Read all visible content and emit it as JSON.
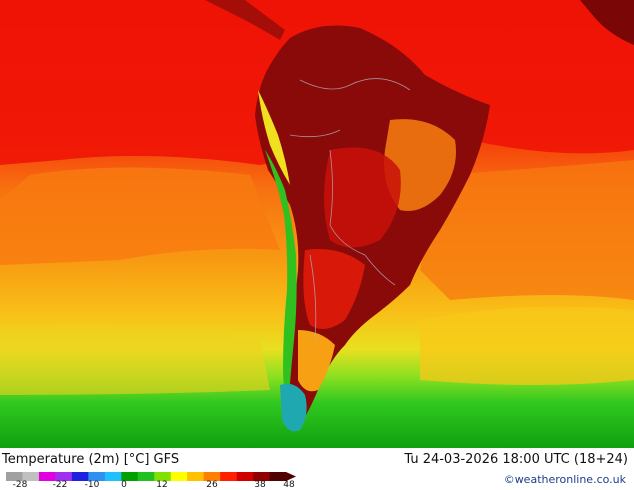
{
  "footer": {
    "title": "Temperature (2m) [°C] GFS",
    "timestamp": "Tu 24-03-2026 18:00 UTC (18+24)",
    "credit": "©weatheronline.co.uk"
  },
  "legend": {
    "ticks": [
      "-28",
      "-22",
      "-10",
      "0",
      "12",
      "26",
      "38",
      "48"
    ],
    "colors": [
      "#a0a0a0",
      "#c0c0c0",
      "#e000e0",
      "#a030f0",
      "#2020e0",
      "#3090f0",
      "#20c0ff",
      "#00a000",
      "#20c020",
      "#80e000",
      "#ffff00",
      "#ffc000",
      "#ff8000",
      "#ff2000",
      "#d00000",
      "#900000",
      "#500000"
    ]
  }
}
